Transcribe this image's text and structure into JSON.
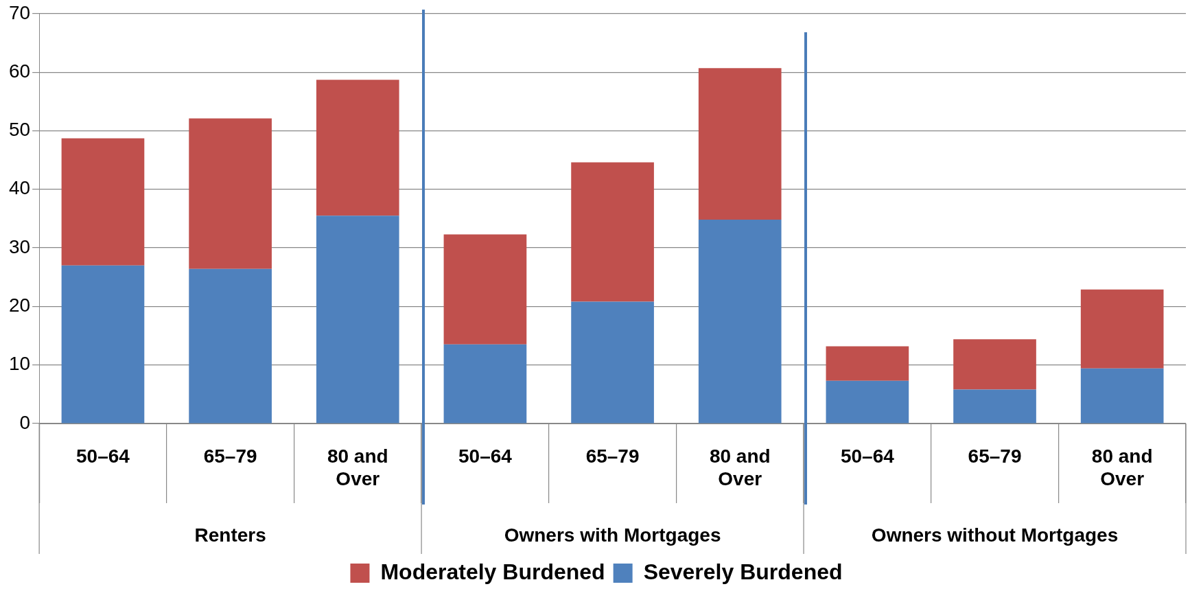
{
  "chart_data": {
    "type": "bar",
    "stacked": true,
    "categories": [
      "50–64",
      "65–79",
      "80 and Over",
      "50–64",
      "65–79",
      "80 and Over",
      "50–64",
      "65–79",
      "80 and Over"
    ],
    "series": [
      {
        "name": "Severely Burdened",
        "color": "#4f81bd",
        "values": [
          27,
          26.4,
          35.5,
          13.5,
          20.8,
          34.8,
          7.3,
          5.8,
          9.4
        ]
      },
      {
        "name": "Moderately Burdened",
        "color": "#c0504d",
        "values": [
          21.7,
          25.7,
          23.2,
          18.8,
          23.8,
          25.9,
          5.9,
          8.6,
          13.5
        ]
      }
    ],
    "annotations": [
      "Renters",
      "Owners with Mortgages",
      "Owners without Mortgages"
    ],
    "ylim": [
      0,
      70
    ],
    "yticks": [
      0,
      10,
      20,
      30,
      40,
      50,
      60,
      70
    ],
    "grid": "y",
    "legend": "bottom"
  }
}
